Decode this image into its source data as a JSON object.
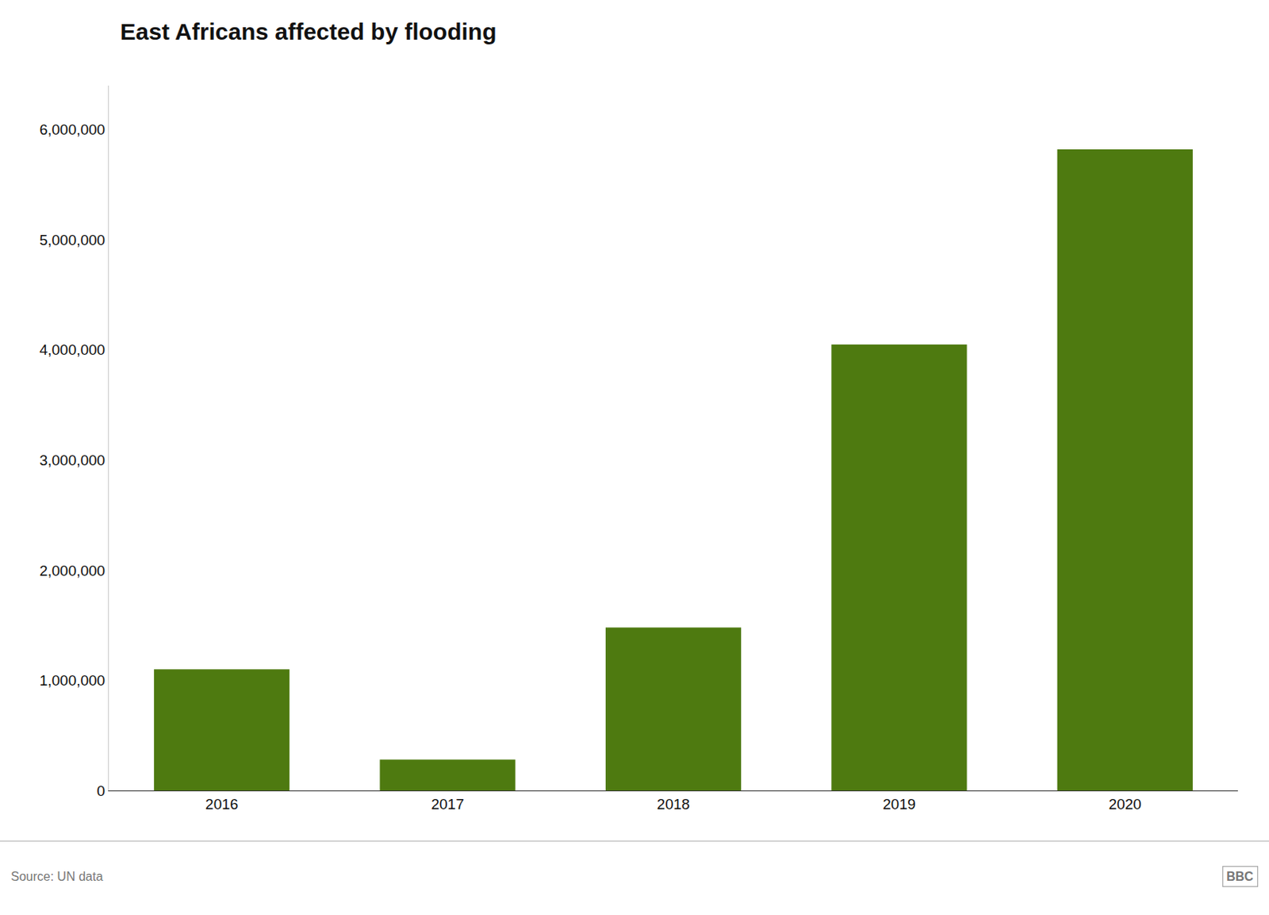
{
  "chart_data": {
    "type": "bar",
    "title": "East Africans affected by flooding",
    "categories": [
      "2016",
      "2017",
      "2018",
      "2019",
      "2020"
    ],
    "values": [
      1100000,
      280000,
      1480000,
      4050000,
      5820000
    ],
    "color": "#4e7a10",
    "ylim": [
      0,
      6400000
    ],
    "yticks": [
      0,
      {
        "value": 1000000,
        "label": "1,000,000"
      },
      {
        "value": 2000000,
        "label": "2,000,000"
      },
      {
        "value": 3000000,
        "label": "3,000,000"
      },
      {
        "value": 4000000,
        "label": "4,000,000"
      },
      {
        "value": 5000000,
        "label": "5,000,000"
      },
      {
        "value": 6000000,
        "label": "6,000,000"
      }
    ],
    "grid": false,
    "annotations": [
      "Source: UN data",
      "BBC"
    ]
  }
}
